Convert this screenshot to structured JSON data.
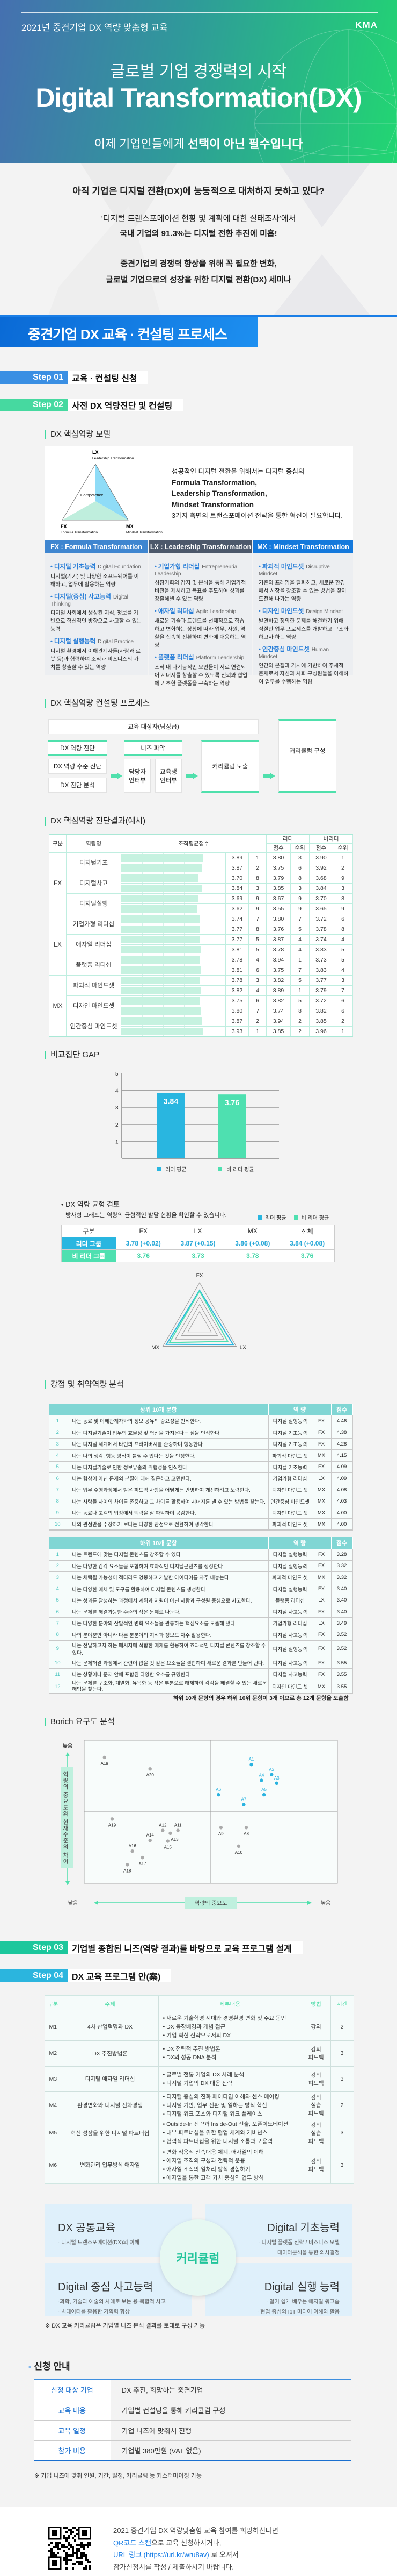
{
  "hero": {
    "subtitle": "2021년 중견기업 DX 역량 맞춤형 교육",
    "logo": "KMA",
    "headline": "글로벌 기업 경쟁력의 시작",
    "title": "Digital Transformation(DX)",
    "tagline_prefix": "이제 기업인들에게 ",
    "tagline_emphasis": "선택이 아닌 필수입니다"
  },
  "intro": {
    "question": "아직 기업은 디지털 전환(DX)에 능동적으로 대처하지 못하고 있다?",
    "survey": "‘디지털 트랜스포메이션 현황 및 계획에 대한 실태조사’에서",
    "stat": "국내 기업의 91.3%는 디지털 전환 추진에 미흡!",
    "closing1": "중견기업의 경쟁력 향상을 위해 꼭 필요한 변화,",
    "closing2": "글로벌 기업으로의 성장을 위한 디지털 전환(DX) 세미나"
  },
  "process_title": "중견기업 DX 교육 · 컨설팅 프로세스",
  "steps": [
    {
      "label": "Step 01",
      "title": "교육 · 컨설팅 신청",
      "color": "#3a8fe3"
    },
    {
      "label": "Step 02",
      "title": "사전 DX 역량진단 및 컨설팅",
      "color": "#46d9a0"
    },
    {
      "label": "Step 03",
      "title": "기업별 종합된 니즈(역량 결과)를 바탕으로 교육 프로그램 설계",
      "color": "#1cc79c"
    },
    {
      "label": "Step 04",
      "title": "DX 교육 프로그램 안(案)",
      "color": "#2bb5de"
    }
  ],
  "model": {
    "heading": "DX 핵심역량 모델",
    "triangle": {
      "lx": "LX",
      "lx_full": "Leadership Transformation",
      "fx": "FX",
      "fx_full": "Formula Transformation",
      "mx": "MX",
      "mx_full": "Mindset Transformation",
      "center": "Competence"
    },
    "desc": [
      "성공적인 디지털 전환을 위해서는 디지털 중심의",
      "Formula Transformation,",
      "Leadership Transformation,",
      "Mindset Transformation",
      "3가지 측면의 트랜스포메이션 전략을 통한 혁신이 필요합니다."
    ],
    "columns": [
      {
        "header": "FX : Formula Transformation",
        "color": "#3f86d0",
        "items": [
          {
            "name": "디지털 기초능력",
            "en": "Digital Foundation",
            "desc": "디지털(기기) 및 다양한 소프트웨어를 이해하고, 업무에 활용하는 역량"
          },
          {
            "name": "디지털(중심) 사고능력",
            "en": "Digital Thinking",
            "desc": "디지털 사회에서 생성된 지식, 정보를 기반으로 혁신적인 방향으로 사고할 수 있는 능력"
          },
          {
            "name": "디지털 실행능력",
            "en": "Digital Practice",
            "desc": "디지털 환경에서 이해관계자들(사람과 로봇 등)과 협력하여 조직과 비즈니스의 가치를 창출할 수 있는 역량"
          }
        ]
      },
      {
        "header": "LX : Leadership Transformation",
        "color": "#4c586b",
        "items": [
          {
            "name": "기업가형 리더십",
            "en": "Entrepreneurial Leadership",
            "desc": "성장기회의 감지 및 분석을 통해 기업가적 비전을 제시하고 목표를 주도하여 성과를 창출해낼 수 있는 역량"
          },
          {
            "name": "애자일 리더십",
            "en": "Agile Leadership",
            "desc": "새로운 기술과 트렌드를 선제적으로 학습하고 변화하는 상황에 따라 업무, 자원, 역할을 신속히 전환하여 변화에 대응하는 역량"
          },
          {
            "name": "플랫폼 리더십",
            "en": "Platform Leadership",
            "desc": "조직 내 다기능적인 요인들이 서로 연결되어 시너지를 창출할 수 있도록 신뢰와 협업에 기초한 플랫폼을 구축하는 역량"
          }
        ]
      },
      {
        "header": "MX : Mindset Transformation",
        "color": "#1479dc",
        "items": [
          {
            "name": "파괴적 마인드셋",
            "en": "Disruptive Mindset",
            "desc": "기존의 프레임을 탈피하고, 새로운 환경에서 시장을 창조할 수 있는 방법을 찾아 도전해 나가는 역량"
          },
          {
            "name": "디자인 마인드셋",
            "en": "Design Mindset",
            "desc": "발견하고 정의한 문제를 해결하기 위해 적절한 업무 프로세스를 개발하고 구조화하고자 하는 역량"
          },
          {
            "name": "인간중심 마인드셋",
            "en": "Human Mindset",
            "desc": "인간의 본질과 가치에 기반하여 주체적 존재로서 자신과 사회 구성원들을 이해하여 업무를 수행하는 역량"
          }
        ]
      }
    ]
  },
  "consulting": {
    "heading": "DX 핵심역량 컨설팅 프로세스",
    "target": "교육 대상자(팀장급)",
    "diag_header": "DX 역량 진단",
    "diag_items": [
      "DX 역량 수준 진단",
      "DX 진단 분석"
    ],
    "needs_header": "니즈 파악",
    "needs_items": [
      "담당자 인터뷰",
      "교육생 인터뷰"
    ],
    "derive": "커리큘럼 도출",
    "compose": "커리큘럼 구성"
  },
  "diagnosis": {
    "heading": "DX 핵심역량 진단결과(예시)",
    "headers": {
      "group": "구분",
      "name": "역량명",
      "org": "조직평균점수",
      "leader": "리더",
      "nonleader": "비리더",
      "score": "점수",
      "rank": "순위"
    },
    "groups": [
      {
        "group": "FX",
        "items": [
          {
            "name": "디지털기초",
            "rows": [
              [
                "3.89",
                "1",
                "3.80",
                "3",
                "3.90",
                "1"
              ],
              [
                "3.87",
                "2",
                "3.75",
                "6",
                "3.92",
                "2"
              ]
            ]
          },
          {
            "name": "디지털사고",
            "rows": [
              [
                "3.70",
                "8",
                "3.79",
                "8",
                "3.68",
                "9"
              ],
              [
                "3.84",
                "3",
                "3.85",
                "3",
                "3.84",
                "3"
              ]
            ]
          },
          {
            "name": "디지털실행",
            "rows": [
              [
                "3.69",
                "9",
                "3.67",
                "9",
                "3.70",
                "8"
              ],
              [
                "3.62",
                "9",
                "3.55",
                "9",
                "3.65",
                "9"
              ]
            ]
          }
        ]
      },
      {
        "group": "LX",
        "items": [
          {
            "name": "기업가형 리더십",
            "rows": [
              [
                "3.74",
                "7",
                "3.80",
                "7",
                "3.72",
                "6"
              ],
              [
                "3.77",
                "8",
                "3.76",
                "5",
                "3.78",
                "8"
              ]
            ]
          },
          {
            "name": "애자일 리더십",
            "rows": [
              [
                "3.77",
                "5",
                "3.87",
                "4",
                "3.74",
                "4"
              ],
              [
                "3.81",
                "5",
                "3.78",
                "4",
                "3.83",
                "5"
              ]
            ]
          },
          {
            "name": "플랫폼 리더십",
            "rows": [
              [
                "3.78",
                "4",
                "3.94",
                "1",
                "3.73",
                "5"
              ],
              [
                "3.81",
                "6",
                "3.75",
                "7",
                "3.83",
                "4"
              ]
            ]
          }
        ]
      },
      {
        "group": "MX",
        "items": [
          {
            "name": "파괴적 마인드셋",
            "rows": [
              [
                "3.78",
                "3",
                "3.82",
                "5",
                "3.77",
                "3"
              ],
              [
                "3.82",
                "4",
                "3.89",
                "1",
                "3.79",
                "7"
              ]
            ]
          },
          {
            "name": "디자인 마인드셋",
            "rows": [
              [
                "3.75",
                "6",
                "3.82",
                "5",
                "3.72",
                "6"
              ],
              [
                "3.80",
                "7",
                "3.74",
                "8",
                "3.82",
                "6"
              ]
            ]
          },
          {
            "name": "인간중심 마인드셋",
            "rows": [
              [
                "3.87",
                "2",
                "3.94",
                "2",
                "3.85",
                "2"
              ],
              [
                "3.93",
                "1",
                "3.85",
                "2",
                "3.96",
                "1"
              ]
            ]
          }
        ]
      }
    ],
    "bar_max": 5
  },
  "gap": {
    "heading": "비교집단 GAP",
    "balance_title": "• DX 역량 균형 검토",
    "balance_desc": "방사형 그래프는 역량의 균형적인 발달 현황을 확인할 수 있습니다.",
    "table": {
      "headers": [
        "구분",
        "FX",
        "LX",
        "MX",
        "전체"
      ],
      "leader": [
        "리더 그룹",
        "3.78 (+0.02)",
        "3.87 (+0.15)",
        "3.86 (+0.08)",
        "3.84 (+0.08)"
      ],
      "nonleader": [
        "비 리더 그룹",
        "3.76",
        "3.73",
        "3.78",
        "3.76"
      ]
    }
  },
  "colors": {
    "leader": "#29b6e0",
    "nonleader": "#4ee0b0"
  },
  "chart_data": [
    {
      "type": "bar",
      "title": "비교집단 GAP",
      "categories": [
        "리더 평균",
        "비 리더 평균"
      ],
      "values": [
        3.84,
        3.76
      ],
      "ylim": [
        0,
        5
      ],
      "yticks": [
        1,
        2,
        3,
        4,
        5
      ],
      "legend": [
        "리더 평균",
        "비 리더 평균"
      ],
      "grid": true
    },
    {
      "type": "radar",
      "axes": [
        "FX",
        "LX",
        "MX"
      ],
      "series": [
        {
          "name": "리더 평균",
          "values": [
            3.78,
            3.87,
            3.86
          ]
        },
        {
          "name": "비 리더 평균",
          "values": [
            3.76,
            3.73,
            3.78
          ]
        }
      ],
      "legend": [
        "리더 평균",
        "비 리더 평균"
      ]
    },
    {
      "type": "scatter",
      "title": "Borich 요구도 분석",
      "xlabel": "역량의 중요도",
      "ylabel": "역량의 중요도와 현재수준의 차이",
      "x_low": "낮음",
      "x_high": "높음",
      "y_high": "높음",
      "xlim": [
        0,
        10
      ],
      "ylim": [
        0,
        10
      ],
      "points": [
        {
          "label": "A1",
          "x": 6.6,
          "y": 8.3,
          "highlight": true
        },
        {
          "label": "A2",
          "x": 7.4,
          "y": 7.6,
          "highlight": true
        },
        {
          "label": "A3",
          "x": 7.6,
          "y": 7.0,
          "highlight": true
        },
        {
          "label": "A4",
          "x": 7.0,
          "y": 7.2,
          "highlight": true
        },
        {
          "label": "A5",
          "x": 7.1,
          "y": 6.2,
          "highlight": true
        },
        {
          "label": "A6",
          "x": 5.3,
          "y": 6.2,
          "highlight": true
        },
        {
          "label": "A7",
          "x": 6.3,
          "y": 5.5,
          "highlight": true
        },
        {
          "label": "A8",
          "x": 6.4,
          "y": 3.9,
          "highlight": false
        },
        {
          "label": "A9",
          "x": 5.4,
          "y": 3.9,
          "highlight": false
        },
        {
          "label": "A10",
          "x": 6.1,
          "y": 2.6,
          "highlight": false
        },
        {
          "label": "A11",
          "x": 3.7,
          "y": 3.7,
          "highlight": false
        },
        {
          "label": "A12",
          "x": 3.1,
          "y": 3.7,
          "highlight": false
        },
        {
          "label": "A13",
          "x": 3.4,
          "y": 3.5,
          "highlight": false
        },
        {
          "label": "A14",
          "x": 2.6,
          "y": 3.0,
          "highlight": false
        },
        {
          "label": "A15",
          "x": 3.3,
          "y": 2.95,
          "highlight": false
        },
        {
          "label": "A16",
          "x": 1.9,
          "y": 2.25,
          "highlight": false
        },
        {
          "label": "A17",
          "x": 2.3,
          "y": 1.8,
          "highlight": false
        },
        {
          "label": "A18",
          "x": 1.7,
          "y": 1.3,
          "highlight": false
        },
        {
          "label": "A19",
          "x": 1.1,
          "y": 4.5,
          "highlight": false
        },
        {
          "label": "A19",
          "x": 0.8,
          "y": 8.8,
          "highlight": false
        },
        {
          "label": "A20",
          "x": 2.6,
          "y": 8.0,
          "highlight": false
        }
      ]
    }
  ],
  "strength": {
    "heading": "강점 및 취약역량 분석",
    "top_header": [
      "상위 10개 문항",
      "역 량",
      "점수"
    ],
    "top": [
      [
        "1",
        "나는 동료 및 이해관계자와의 정보 공유의 중요성을 인식한다.",
        "디지털 실행능력",
        "FX",
        "4.46"
      ],
      [
        "2",
        "나는 디지털기술이 업무의 효율성 및 혁신을 가져온다는 점을 인식한다.",
        "디지털 기초능력",
        "FX",
        "4.38"
      ],
      [
        "3",
        "나는 디지털 세계에서 타인의 프라이버시를 존중하며 행동한다.",
        "디지털 기초능력",
        "FX",
        "4.28"
      ],
      [
        "4",
        "나는 나의 생각, 행동 방식이 틀릴 수 있다는 것을 인정한다.",
        "파괴적 마인드 셋",
        "MX",
        "4.15"
      ],
      [
        "5",
        "나는 디지털기술로 인한 정보유출의 위험성을 인식한다.",
        "디지털 기초능력",
        "FX",
        "4.09"
      ],
      [
        "6",
        "나는 협상이 아닌 문제의 본질에 대해 질문하고 고민한다.",
        "기업가형 리더십",
        "LX",
        "4.09"
      ],
      [
        "7",
        "나는 업무 수행과정에서 받은 피드백 사항을 어떻게든 반영하여 개선하려고 노력한다.",
        "디자인 마인드 셋",
        "MX",
        "4.08"
      ],
      [
        "8",
        "나는 사람들 사이의 차이를 존중하고 그 차이를 활용하여 시너지를 낼 수 있는 방법을 찾는다.",
        "인간중심 마인드셋",
        "MX",
        "4.03"
      ],
      [
        "9",
        "나는 동료나 고객의 입장에서 맥락을 잘 파악하여 공감한다.",
        "디자인 마인드 셋",
        "MX",
        "4.00"
      ],
      [
        "10",
        "나의 관점만을 주장하기 보다는 다양한 관점으로 전환하여 생각한다.",
        "파괴적 마인드 셋",
        "MX",
        "4.00"
      ]
    ],
    "bottom_header": [
      "하위 10개 문항",
      "역 량",
      "점수"
    ],
    "bottom": [
      [
        "1",
        "나는 트렌드에 맞는 디지털 콘텐츠를 창조할 수 있다.",
        "디지털 실행능력",
        "FX",
        "3.28"
      ],
      [
        "2",
        "나는 다양한 감각 요소들을 포함하여 효과적인 디지털콘텐츠를 생성한다.",
        "디지털 실행능력",
        "FX",
        "3.32"
      ],
      [
        "3",
        "나는 채택될 가능성이 적더라도 엉뚱하고 기발한 아이디어를 자주 내놓는다.",
        "파괴적 마인드 셋",
        "MX",
        "3.32"
      ],
      [
        "4",
        "나는 다양한 매체 및 도구를 활용하여 디지털 콘텐츠를 생성한다.",
        "디지털 실행능력",
        "FX",
        "3.40"
      ],
      [
        "5",
        "나는 성과를 달성하는 과정에서 계획과 지원이 아닌 사람과 구성원 중심으로 사고한다.",
        "플랫폼 리더십",
        "LX",
        "3.40"
      ],
      [
        "6",
        "나는 문제를 해결가능한 수준의 작은 문제로 나눈다.",
        "디지털 사고능력",
        "FX",
        "3.40"
      ],
      [
        "7",
        "나는 다양한 분야의 산발적인 변화 요소들을 관통하는 핵심요소를 도출해 냈다.",
        "기업가형 리더십",
        "LX",
        "3.49"
      ],
      [
        "8",
        "나의 분야뿐만 아니라 다른 분분야의 지식과 정보도 자주 활용한다.",
        "디지털 사고능력",
        "FX",
        "3.52"
      ],
      [
        "9",
        "나는 전달하고자 하는 메시지에 적합한 매체를 활용하여 효과적인 디지털 콘텐츠를 창조할 수 있다.",
        "디지털 실행능력",
        "FX",
        "3.52"
      ],
      [
        "10",
        "나는 문제해결 과정에서 관련이 없을 것 같은 요소들을 결합하여 새로운 결과를 만들어 낸다.",
        "디지털 사고능력",
        "FX",
        "3.55"
      ],
      [
        "11",
        "나는 상황이나 문제 안에 포함된 다양한 요소를 규명한다.",
        "디지털 사고능력",
        "FX",
        "3.55"
      ],
      [
        "12",
        "나는 문제를 구조화, 계열화, 유목화 등 작은 부분으로 해체하여 각각을 해결할 수 있는 새로운 해법을 찾는다.",
        "디자인 마인드 셋",
        "MX",
        "3.55"
      ]
    ],
    "note": "하위 10개 문항의 경우 하위 10위 문항이 3개 이므로 총 12개 문항을 도출함"
  },
  "borich": {
    "heading": "Borich 요구도 분석"
  },
  "program": {
    "headers": [
      "구분",
      "주제",
      "세부내용",
      "방법",
      "시간"
    ],
    "rows": [
      {
        "id": "M1",
        "topic": "4차 산업혁명과 DX",
        "details": [
          "• 새로운 기술혁명 시대와 경영환경 변화 및 주요 동인",
          "• DX 등장배경과 개념 접근",
          "• 기업 혁신 전략으로서의 DX"
        ],
        "method": [
          "강의"
        ],
        "hours": "2"
      },
      {
        "id": "M2",
        "topic": "DX 추진방법론",
        "details": [
          "• DX 전략적 추진 방법론",
          "• DX의 성공 DNA 분석"
        ],
        "method": [
          "강의",
          "피드백"
        ],
        "hours": "3"
      },
      {
        "id": "M3",
        "topic": "디지털 애자일 리더십",
        "details": [
          "• 글로벌 전통 기업의 DX 사례 분석",
          "• 디지털 기업의 DX 대응 전략"
        ],
        "method": [
          "강의",
          "피드백"
        ],
        "hours": "3"
      },
      {
        "id": "M4",
        "topic": "환경변화와 디지털 진화경쟁",
        "details": [
          "• 디지털 중심의 진화 패어다임 이해와 센스 메이킹",
          "• 디지털 기반, 업무 전환 및 일하는 방식 혁신",
          "• 디지털 워크 포스와 디지털 워크 플레이스"
        ],
        "method": [
          "강의",
          "실습",
          "피드백"
        ],
        "hours": "2"
      },
      {
        "id": "M5",
        "topic": "혁신 성장을 위한 디지털 파트너십",
        "details": [
          "• Outside-In 전략과 Inside-Out 전술, 오픈이노베이션",
          "• 내부 파트너십을 위한 협업 체계와 거버넌스",
          "• 협력적 파트너십을 위한 디지털 소통과 포용력"
        ],
        "method": [
          "강의",
          "실습",
          "피드백"
        ],
        "hours": "3"
      },
      {
        "id": "M6",
        "topic": "변화관리 업무방식 애자일",
        "details": [
          "• 변화 적응적 신속대응 체계, 애자일의 이해",
          "• 애자일 조직의 구성과 전략적 운용",
          "• 애자일 조직의 일처리 방식 경험하기",
          "• 애자일을 통한 고객 가치 중심의 업무 방식"
        ],
        "method": [
          "강의",
          "피드백"
        ],
        "hours": "3"
      }
    ]
  },
  "curriculum": {
    "center": "커리큘럼",
    "blocks": [
      {
        "title": "DX 공통교육",
        "items": [
          "· 디지털 트랜스포메이션(DX)의 이해"
        ]
      },
      {
        "title": "Digital 기초능력",
        "items": [
          "· 디지털 플랫폼 전략 / 비즈니스 모델",
          "· 데이터분석을 통한 의사결정"
        ]
      },
      {
        "title": "Digital 중심 사고능력",
        "items": [
          "·과학, 기술과 예술의 사례로 보는 융·복합적 사고",
          "· 빅데이터를 활용한 기획력 향상"
        ]
      },
      {
        "title": "Digital 실행 능력",
        "items": [
          "· 알기 쉽게 배우는 애자일 워크숍",
          "· 현업 중심의 IoT 미디어 이해와 활용"
        ]
      }
    ],
    "note": "※ DX 교육 커리큘럼은 기업별 니즈 분석 결과를 토대로 구성 가능"
  },
  "apply": {
    "heading": "신청 안내",
    "rows": [
      [
        "신청 대상 기업",
        "DX 추진, 희망하는 중견기업"
      ],
      [
        "교육 내용",
        "기업별 컨설팅을 통해 커리큘럼 구성"
      ],
      [
        "교육 일정",
        "기업 니즈에 맞춰서 진행"
      ],
      [
        "참가 비용",
        "기업별 380만원 (VAT 없음)"
      ]
    ],
    "note": "※ 기업 니즈에 맞춰 인원, 기간, 일정, 커리큘럼 등 커스터마이징 가능"
  },
  "footer": {
    "line1": "2021 중견기업 DX 역량맞춤형 교육 참여를 희망하신다면",
    "qr_link": "QR코드 스캔",
    "line2_rest": "으로 교육 신청하시거나,",
    "url_link": "URL 링크 (https://url.kr/wru8av)",
    "line3_rest": " 로 오셔서",
    "line4": "참가신청서를 작성 / 제출하시기 바랍니다."
  }
}
